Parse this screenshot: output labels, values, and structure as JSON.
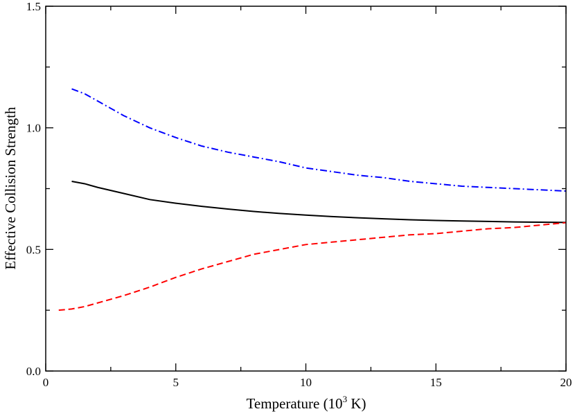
{
  "chart_data": {
    "type": "line",
    "title": "",
    "xlabel_main": "Temperature (10",
    "xlabel_sup": "3",
    "xlabel_end": " K)",
    "ylabel": "Effective Collision Strength",
    "xlim": [
      0,
      20
    ],
    "ylim": [
      0.0,
      1.5
    ],
    "xticks": [
      0,
      5,
      10,
      15,
      20
    ],
    "xtick_labels": [
      "0",
      "5",
      "10",
      "15",
      "20"
    ],
    "yticks": [
      0.0,
      0.5,
      1.0,
      1.5
    ],
    "ytick_labels": [
      "0.0",
      "0.5",
      "1.0",
      "1.5"
    ],
    "grid": false,
    "series": [
      {
        "color": "#0000ff",
        "dash": "dashdot",
        "x": [
          1,
          1.5,
          2,
          2.5,
          3,
          4,
          5,
          6,
          7,
          8,
          9,
          10,
          11,
          12,
          13,
          14,
          15,
          16,
          17,
          18,
          19,
          20
        ],
        "y": [
          1.16,
          1.14,
          1.11,
          1.08,
          1.05,
          1.0,
          0.96,
          0.925,
          0.9,
          0.88,
          0.86,
          0.835,
          0.82,
          0.805,
          0.795,
          0.78,
          0.77,
          0.76,
          0.755,
          0.75,
          0.745,
          0.74
        ]
      },
      {
        "color": "#000000",
        "dash": "solid",
        "x": [
          1,
          1.5,
          2,
          3,
          4,
          5,
          6,
          7,
          8,
          9,
          10,
          11,
          12,
          13,
          14,
          15,
          16,
          17,
          18,
          19,
          20
        ],
        "y": [
          0.78,
          0.77,
          0.755,
          0.73,
          0.705,
          0.69,
          0.677,
          0.666,
          0.656,
          0.648,
          0.641,
          0.635,
          0.63,
          0.626,
          0.622,
          0.619,
          0.617,
          0.615,
          0.613,
          0.612,
          0.611
        ]
      },
      {
        "color": "#ff0000",
        "dash": "dashed",
        "x": [
          0.5,
          1,
          1.5,
          2,
          3,
          4,
          5,
          6,
          7,
          8,
          9,
          10,
          11,
          12,
          13,
          14,
          15,
          16,
          17,
          18,
          19,
          20
        ],
        "y": [
          0.25,
          0.255,
          0.265,
          0.28,
          0.31,
          0.345,
          0.385,
          0.42,
          0.45,
          0.48,
          0.5,
          0.52,
          0.53,
          0.54,
          0.55,
          0.56,
          0.565,
          0.575,
          0.585,
          0.59,
          0.6,
          0.61
        ]
      }
    ]
  }
}
